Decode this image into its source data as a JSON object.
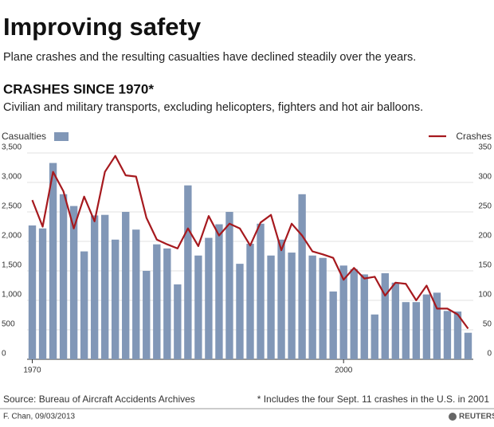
{
  "chart_data": {
    "type": "bar-line",
    "title": "Improving safety",
    "subtitle": "Plane crashes and the resulting casualties have declined steadily over the years.",
    "heading": "CRASHES SINCE 1970*",
    "description": "Civilian and military transports, excluding helicopters, fighters and hot air balloons.",
    "x": [
      1970,
      1971,
      1972,
      1973,
      1974,
      1975,
      1976,
      1977,
      1978,
      1979,
      1980,
      1981,
      1982,
      1983,
      1984,
      1985,
      1986,
      1987,
      1988,
      1989,
      1990,
      1991,
      1992,
      1993,
      1994,
      1995,
      1996,
      1997,
      1998,
      1999,
      2000,
      2001,
      2002,
      2003,
      2004,
      2005,
      2006,
      2007,
      2008,
      2009,
      2010,
      2011,
      2012
    ],
    "xlim": [
      1969.5,
      2012.5
    ],
    "xticks": [
      1970,
      2000
    ],
    "series": [
      {
        "name": "Casualties",
        "type": "bar",
        "color": "#8197b7",
        "values": [
          2270,
          2220,
          3330,
          2800,
          2600,
          1830,
          2440,
          2450,
          2030,
          2500,
          2200,
          1500,
          1950,
          1880,
          1270,
          2950,
          1760,
          2060,
          2290,
          2500,
          1620,
          1960,
          2300,
          1760,
          2030,
          1810,
          2800,
          1760,
          1720,
          1150,
          1590,
          1530,
          1440,
          760,
          1460,
          1300,
          970,
          970,
          1100,
          1130,
          820,
          810,
          450
        ]
      },
      {
        "name": "Crashes",
        "type": "line",
        "axis": "y2",
        "color": "#a6191e",
        "values": [
          270,
          225,
          318,
          285,
          222,
          276,
          234,
          318,
          345,
          312,
          310,
          240,
          203,
          195,
          188,
          222,
          192,
          243,
          210,
          230,
          222,
          193,
          232,
          245,
          185,
          230,
          210,
          183,
          178,
          172,
          135,
          155,
          137,
          140,
          108,
          130,
          128,
          100,
          125,
          86,
          86,
          76,
          52
        ]
      }
    ],
    "ylim": [
      0,
      3500
    ],
    "yticks": [
      0,
      {
        "value": 500,
        "label": "500"
      },
      {
        "value": 1000,
        "label": "1,000"
      },
      {
        "value": 1500,
        "label": "1,500"
      },
      {
        "value": 2000,
        "label": "2,000"
      },
      {
        "value": 2500,
        "label": "2,500"
      },
      {
        "value": 3000,
        "label": "3,000"
      },
      {
        "value": 3500,
        "label": "3,500"
      }
    ],
    "y2lim": [
      0,
      350
    ],
    "y2ticks": [
      0,
      50,
      100,
      150,
      200,
      250,
      300,
      350
    ],
    "grid": true,
    "source": "Source: Bureau of Aircraft Accidents Archives",
    "footnote": "* Includes the four Sept. 11 crashes in the U.S. in 2001",
    "credit": "F. Chan, 09/03/2013",
    "logo": "REUTERS"
  }
}
